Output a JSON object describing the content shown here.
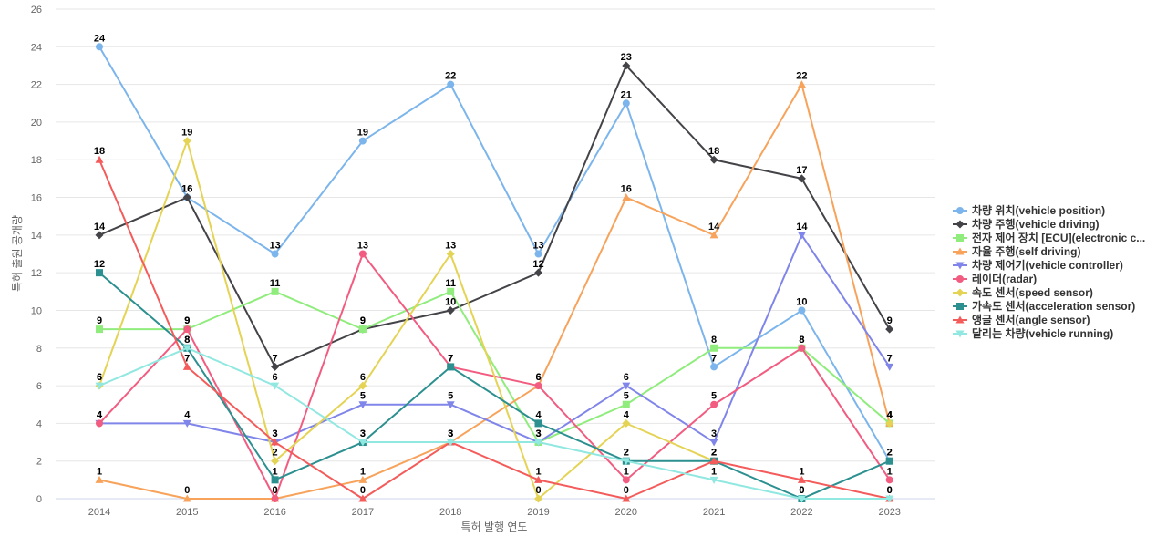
{
  "chart_data": {
    "type": "line",
    "title": "",
    "xlabel": "특허 발행 연도",
    "ylabel": "특허 출원 공개량",
    "x": [
      "2014",
      "2015",
      "2016",
      "2017",
      "2018",
      "2019",
      "2020",
      "2021",
      "2022",
      "2023"
    ],
    "yticks": [
      "0",
      "2",
      "4",
      "6",
      "8",
      "10",
      "12",
      "14",
      "16",
      "18",
      "20",
      "22",
      "24",
      "26"
    ],
    "ylim": [
      0,
      26
    ],
    "grid": true,
    "legend_position": "right",
    "series": [
      {
        "name": "차량 위치(vehicle position)",
        "color": "#7cb5ec",
        "marker": "circle",
        "values": [
          24,
          16,
          13,
          19,
          22,
          13,
          21,
          7,
          10,
          2
        ]
      },
      {
        "name": "차량 주행(vehicle driving)",
        "color": "#434348",
        "marker": "diamond",
        "values": [
          14,
          16,
          7,
          9,
          10,
          12,
          23,
          18,
          17,
          9
        ]
      },
      {
        "name": "전자 제어 장치 [ECU](electronic c...",
        "color": "#90ed7d",
        "marker": "square",
        "values": [
          9,
          9,
          11,
          9,
          11,
          3,
          5,
          8,
          8,
          4
        ]
      },
      {
        "name": "자율 주행(self driving)",
        "color": "#f7a35c",
        "marker": "triangle",
        "values": [
          1,
          0,
          0,
          1,
          3,
          6,
          16,
          14,
          22,
          4
        ]
      },
      {
        "name": "차량 제어기(vehicle controller)",
        "color": "#8085e9",
        "marker": "triangle-down",
        "values": [
          4,
          4,
          3,
          5,
          5,
          3,
          6,
          3,
          14,
          7
        ]
      },
      {
        "name": "레이더(radar)",
        "color": "#f15c80",
        "marker": "circle",
        "values": [
          4,
          9,
          0,
          13,
          7,
          6,
          1,
          5,
          8,
          1
        ]
      },
      {
        "name": "속도 센서(speed sensor)",
        "color": "#e4d354",
        "marker": "diamond",
        "values": [
          6,
          19,
          2,
          6,
          13,
          0,
          4,
          2,
          null,
          4
        ]
      },
      {
        "name": "가속도 센서(acceleration sensor)",
        "color": "#2b908f",
        "marker": "square",
        "values": [
          12,
          8,
          1,
          3,
          7,
          4,
          2,
          2,
          0,
          2
        ]
      },
      {
        "name": "앵글 센서(angle sensor)",
        "color": "#f45b5b",
        "marker": "triangle",
        "values": [
          18,
          7,
          3,
          0,
          3,
          1,
          0,
          2,
          1,
          0
        ]
      },
      {
        "name": "달리는 차량(vehicle running)",
        "color": "#91e8e1",
        "marker": "triangle-down",
        "values": [
          6,
          8,
          6,
          3,
          3,
          3,
          2,
          1,
          0,
          0
        ]
      }
    ]
  }
}
